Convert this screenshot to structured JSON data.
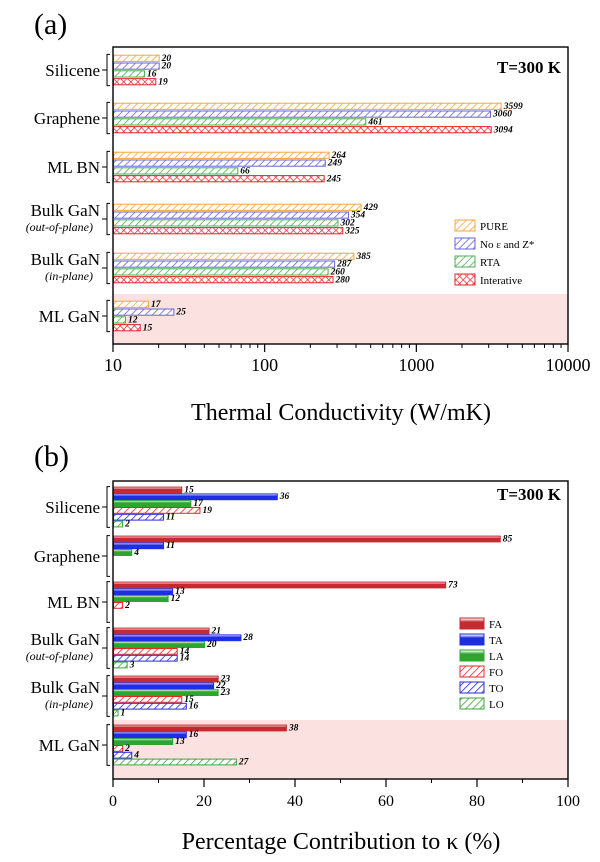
{
  "colors": {
    "PURE": "#f5a540",
    "No_eps_Z": "#6a64d8",
    "RTA": "#4caf50",
    "Interative": "#e5262a",
    "FA": "#c42a2f",
    "TA": "#1f2ee0",
    "LA": "#2ca62c",
    "FO": "#e5262a",
    "TO": "#2a2ad8",
    "LO": "#3aa63a",
    "highlight": "#fbe2e1"
  },
  "chart_data": [
    {
      "panel": "(a)",
      "type": "bar",
      "orientation": "horizontal",
      "annotation": "T=300 K",
      "xlabel": "Thermal Conductivity (W/mK)",
      "xscale": "log",
      "xlim": [
        10,
        10000
      ],
      "xticks": [
        "10",
        "100",
        "1000",
        "10000"
      ],
      "categories": [
        {
          "main": "Silicene",
          "sub": ""
        },
        {
          "main": "Graphene",
          "sub": ""
        },
        {
          "main": "ML BN",
          "sub": ""
        },
        {
          "main": "Bulk GaN",
          "sub": "(out-of-plane)"
        },
        {
          "main": "Bulk GaN",
          "sub": "(in-plane)"
        },
        {
          "main": "ML GaN",
          "sub": ""
        }
      ],
      "highlighted_category": "ML GaN",
      "legend_position": "right",
      "series": [
        {
          "name": "PURE",
          "key": "PURE",
          "pattern": "hatch",
          "values": [
            20,
            3599,
            264,
            429,
            385,
            17
          ],
          "labels": [
            "20",
            "3599",
            "264",
            "429",
            "385",
            "17"
          ]
        },
        {
          "name": "No ε and Z*",
          "key": "No_eps_Z",
          "pattern": "hatch",
          "values": [
            20,
            3060,
            249,
            354,
            287,
            25
          ],
          "labels": [
            "20",
            "3060",
            "249",
            "354",
            "287",
            "25"
          ]
        },
        {
          "name": "RTA",
          "key": "RTA",
          "pattern": "hatch",
          "values": [
            16,
            461,
            66,
            302,
            260,
            12
          ],
          "labels": [
            "16",
            "461",
            "66",
            "302",
            "260",
            "12"
          ]
        },
        {
          "name": "Interative",
          "key": "Interative",
          "pattern": "cross",
          "values": [
            19,
            3094,
            245,
            325,
            280,
            15
          ],
          "labels": [
            "19",
            "3094",
            "245",
            "325",
            "280",
            "15"
          ]
        }
      ]
    },
    {
      "panel": "(b)",
      "type": "bar",
      "orientation": "horizontal",
      "annotation": "T=300 K",
      "xlabel": "Percentage Contribution to κ (%)",
      "xlim": [
        0,
        100
      ],
      "xticks": [
        "0",
        "20",
        "40",
        "60",
        "80",
        "100"
      ],
      "categories": [
        {
          "main": "Silicene",
          "sub": ""
        },
        {
          "main": "Graphene",
          "sub": ""
        },
        {
          "main": "ML BN",
          "sub": ""
        },
        {
          "main": "Bulk GaN",
          "sub": "(out-of-plane)"
        },
        {
          "main": "Bulk GaN",
          "sub": "(in-plane)"
        },
        {
          "main": "ML GaN",
          "sub": ""
        }
      ],
      "highlighted_category": "ML GaN",
      "legend_position": "right",
      "series": [
        {
          "name": "FA",
          "key": "FA",
          "pattern": "solid",
          "values": [
            15,
            85,
            73,
            21,
            23,
            38
          ],
          "labels": [
            "15",
            "85",
            "73",
            "21",
            "23",
            "38"
          ]
        },
        {
          "name": "TA",
          "key": "TA",
          "pattern": "solid",
          "values": [
            36,
            11,
            13,
            28,
            22,
            16
          ],
          "labels": [
            "36",
            "11",
            "13",
            "28",
            "22",
            "16"
          ]
        },
        {
          "name": "LA",
          "key": "LA",
          "pattern": "solid",
          "values": [
            17,
            4,
            12,
            20,
            23,
            13
          ],
          "labels": [
            "17",
            "4",
            "12",
            "20",
            "23",
            "13"
          ]
        },
        {
          "name": "FO",
          "key": "FO",
          "pattern": "hatch",
          "values": [
            19,
            0,
            2,
            14,
            15,
            2
          ],
          "labels": [
            "19",
            "",
            "2",
            "14",
            "15",
            "2"
          ]
        },
        {
          "name": "TO",
          "key": "TO",
          "pattern": "hatch",
          "values": [
            11,
            0,
            0,
            14,
            16,
            4
          ],
          "labels": [
            "11",
            "",
            "",
            "14",
            "16",
            "4"
          ]
        },
        {
          "name": "LO",
          "key": "LO",
          "pattern": "hatch",
          "values": [
            2,
            0,
            0,
            3,
            1,
            27
          ],
          "labels": [
            "2",
            "",
            "",
            "3",
            "1",
            "27"
          ]
        }
      ]
    }
  ]
}
